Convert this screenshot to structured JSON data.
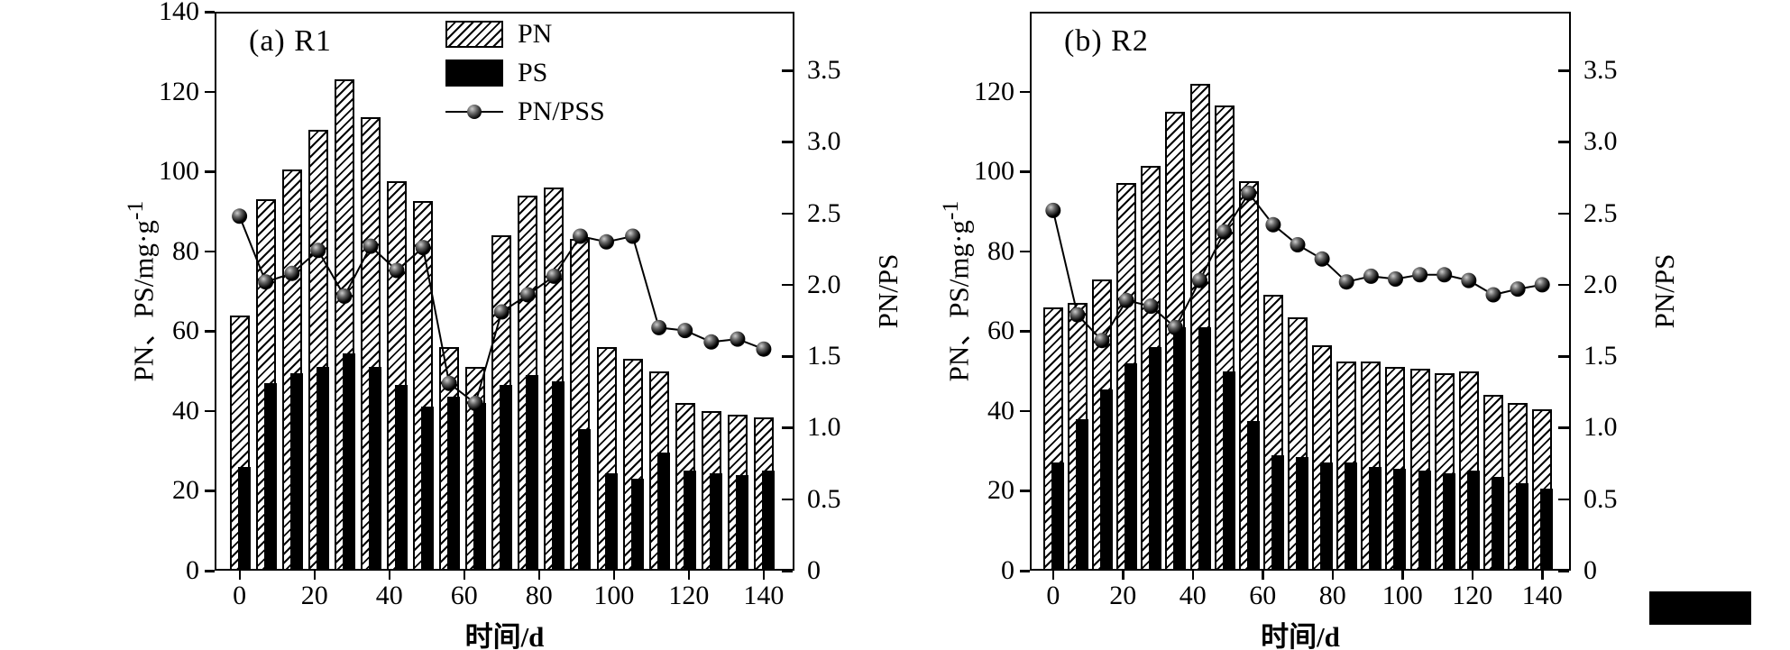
{
  "figure": {
    "background": "#ffffff",
    "ink_color": "#000000",
    "bottom_right_black_mark": "black-rectangle"
  },
  "chart_data": [
    {
      "type": "bar",
      "panel_label": "(a) R1",
      "xlabel": "时间/d",
      "ylabel_left": "PN、PS/mg·g",
      "ylabel_left_sup": "-1",
      "ylabel_right": "PN/PS",
      "ylim_left": [
        0,
        140
      ],
      "ylim_right": [
        0,
        3.91
      ],
      "grid": false,
      "legend_position": "inside-top-right",
      "legend": {
        "items": [
          {
            "swatch": "hatched-bar",
            "label": "PN"
          },
          {
            "swatch": "solid-bar",
            "label": "PS"
          },
          {
            "swatch": "line-marker",
            "label": "PN/PSS"
          }
        ]
      },
      "x": [
        0,
        7,
        14,
        21,
        28,
        35,
        42,
        49,
        56,
        63,
        70,
        77,
        84,
        91,
        98,
        105,
        112,
        119,
        126,
        133,
        140
      ],
      "series": [
        {
          "name": "PN",
          "type": "bar",
          "style": "hatched",
          "axis": "left",
          "values": [
            64,
            93,
            100.5,
            110.5,
            123,
            113.5,
            97.5,
            92.5,
            56,
            51,
            84,
            94,
            96,
            83,
            56,
            53,
            50,
            42,
            40,
            39,
            38.5
          ]
        },
        {
          "name": "PS",
          "type": "bar",
          "style": "solid-black",
          "axis": "left",
          "values": [
            26,
            47,
            49.5,
            51,
            54.5,
            51,
            46.5,
            41,
            43.5,
            42,
            46.5,
            49,
            47.5,
            35.5,
            24.5,
            23,
            29.5,
            25,
            24.5,
            24,
            25
          ]
        },
        {
          "name": "PN/PSS",
          "type": "line-markers",
          "style": "black-sphere",
          "axis": "right",
          "values": [
            2.48,
            2.02,
            2.08,
            2.24,
            1.92,
            2.27,
            2.1,
            2.26,
            1.31,
            1.17,
            1.81,
            1.93,
            2.06,
            2.34,
            2.3,
            2.34,
            1.7,
            1.68,
            1.6,
            1.62,
            1.55
          ]
        }
      ],
      "left_tick_labels": [
        "140",
        "120",
        "100",
        "80",
        "60",
        "40",
        "20",
        "0"
      ],
      "right_tick_labels": [
        "3.5",
        "3.0",
        "2.5",
        "2.0",
        "1.5",
        "1.0",
        "0.5",
        "0"
      ],
      "x_tick_labels": [
        "0",
        "20",
        "40",
        "60",
        "80",
        "100",
        "120",
        "140"
      ]
    },
    {
      "type": "bar",
      "panel_label": "(b) R2",
      "xlabel": "时间/d",
      "ylabel_left": "PN、PS/mg·g",
      "ylabel_left_sup": "-1",
      "ylabel_right": "PN/PS",
      "ylim_left": [
        0,
        140
      ],
      "ylim_right": [
        0,
        3.91
      ],
      "grid": false,
      "x": [
        0,
        7,
        14,
        21,
        28,
        35,
        42,
        49,
        56,
        63,
        70,
        77,
        84,
        91,
        98,
        105,
        112,
        119,
        126,
        133,
        140
      ],
      "series": [
        {
          "name": "PN",
          "type": "bar",
          "style": "hatched",
          "axis": "left",
          "values": [
            66,
            67,
            73,
            97,
            101.5,
            115,
            122,
            116.5,
            97.5,
            69,
            63.5,
            56.5,
            52.5,
            52.5,
            51,
            50.5,
            49.5,
            50,
            44,
            42,
            40.5
          ]
        },
        {
          "name": "PS",
          "type": "bar",
          "style": "solid-black",
          "axis": "left",
          "values": [
            27,
            38,
            45.5,
            52,
            56,
            61,
            61,
            50,
            37.5,
            29,
            28.5,
            27,
            27,
            26,
            25.5,
            25,
            24.5,
            25,
            23.5,
            22,
            20.5
          ]
        },
        {
          "name": "PN/PSS",
          "type": "line-markers",
          "style": "black-sphere",
          "axis": "right",
          "values": [
            2.52,
            1.79,
            1.61,
            1.89,
            1.85,
            1.7,
            2.03,
            2.37,
            2.64,
            2.42,
            2.28,
            2.18,
            2.02,
            2.06,
            2.04,
            2.07,
            2.07,
            2.03,
            1.93,
            1.97,
            2.0
          ]
        }
      ],
      "left_tick_labels": [
        "120",
        "100",
        "80",
        "60",
        "40",
        "20",
        "0"
      ],
      "right_tick_labels": [
        "3.5",
        "3.0",
        "2.5",
        "2.0",
        "1.5",
        "1.0",
        "0.5",
        "0"
      ],
      "x_tick_labels": [
        "0",
        "20",
        "40",
        "60",
        "80",
        "100",
        "120",
        "140"
      ]
    }
  ]
}
